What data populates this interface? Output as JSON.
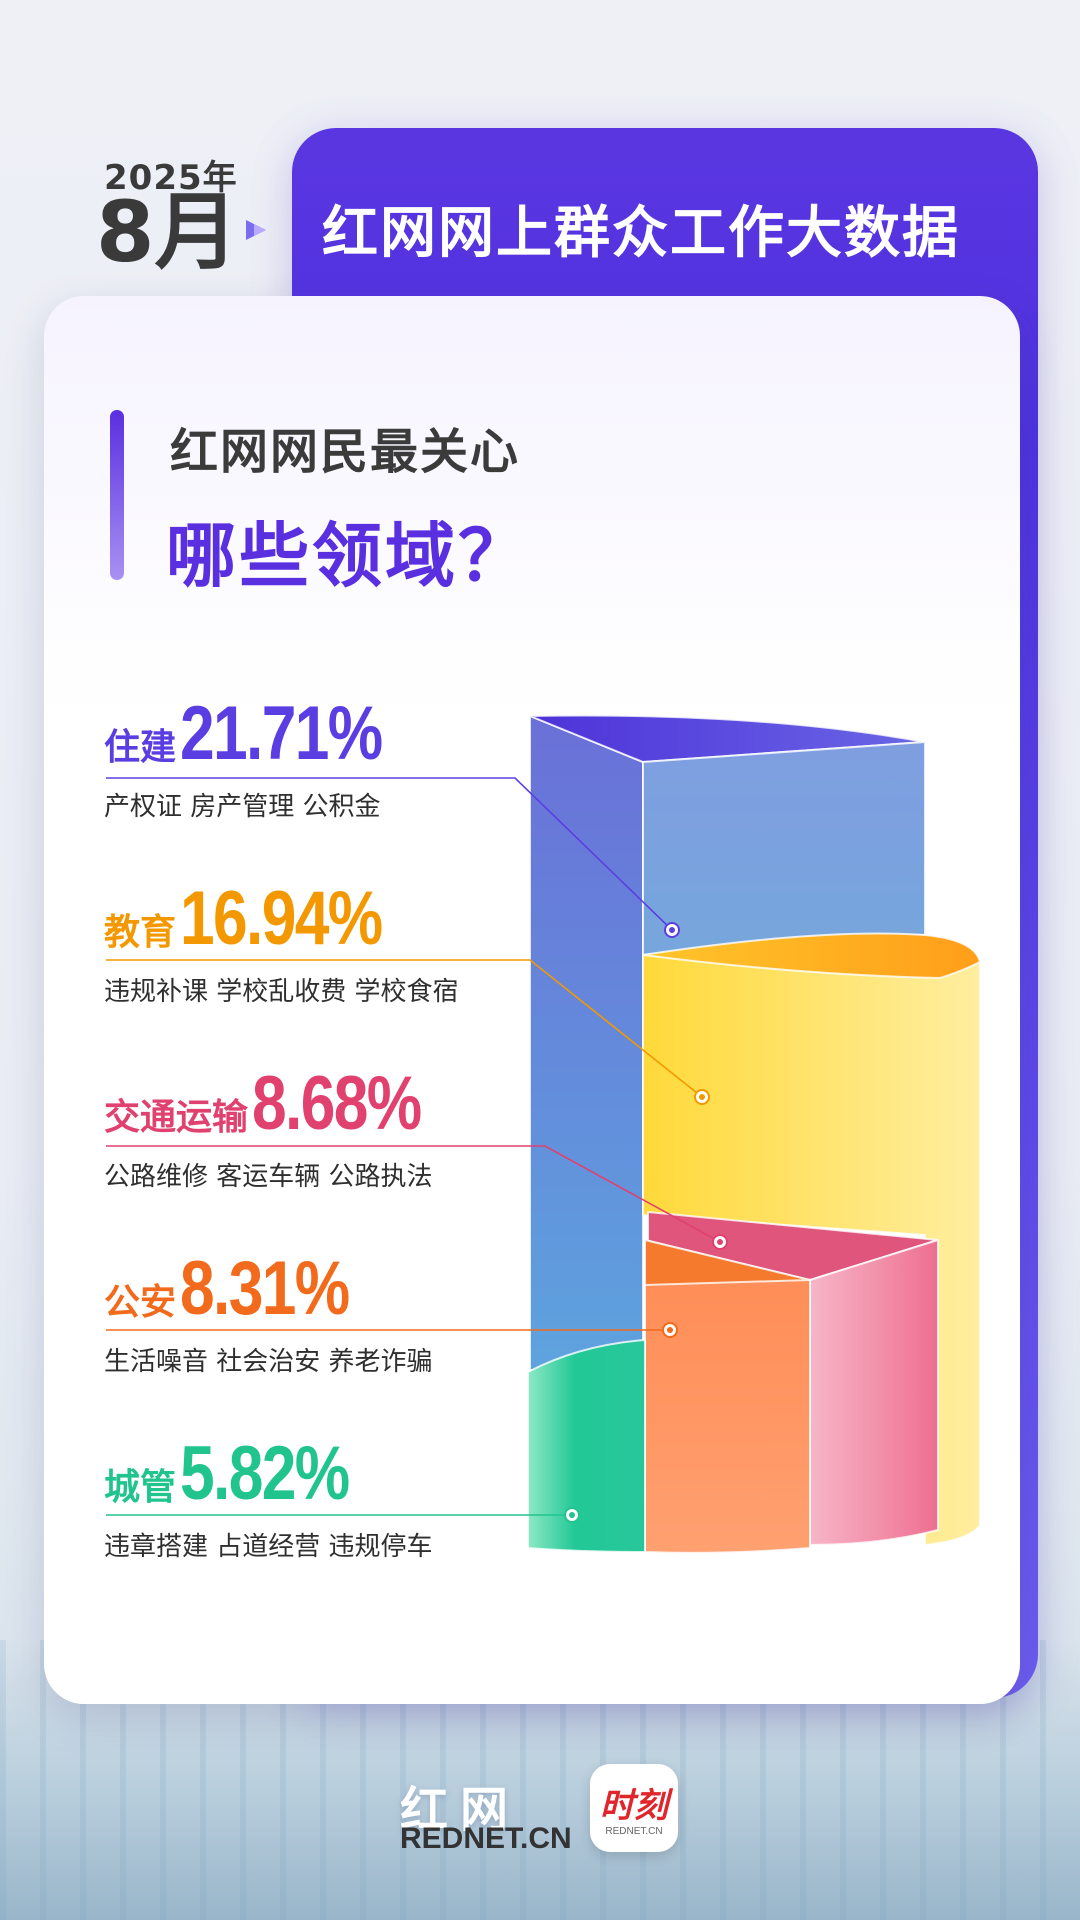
{
  "header": {
    "year": "2025年",
    "month": "8月",
    "title": "红网网上群众工作大数据"
  },
  "question": {
    "line1": "红网网民最关心",
    "line2": "哪些领域？"
  },
  "footer": {
    "logo_cn": "红网",
    "logo_en": "REDNET.CN",
    "app_name": "时刻",
    "app_sub": "REDNET.CN"
  },
  "colors": {
    "purple": "#5b3ee2",
    "orange_edu": "#f39800",
    "pink_traffic": "#e0416f",
    "orange_police": "#f26a1b",
    "green_urban": "#22c48e"
  },
  "chart_data": {
    "type": "bar",
    "title": "",
    "categories": [
      {
        "name": "住建",
        "value": 21.71,
        "label": "21.71%",
        "color": "#5b3ee2",
        "topics": "产权证  房产管理  公积金"
      },
      {
        "name": "教育",
        "value": 16.94,
        "label": "16.94%",
        "color": "#f39800",
        "topics": "违规补课  学校乱收费  学校食宿"
      },
      {
        "name": "交通运输",
        "value": 8.68,
        "label": "8.68%",
        "color": "#e0416f",
        "topics": "公路维修  客运车辆  公路执法"
      },
      {
        "name": "公安",
        "value": 8.31,
        "label": "8.31%",
        "color": "#f26a1b",
        "topics": "生活噪音  社会治安  养老诈骗"
      },
      {
        "name": "城管",
        "value": 5.82,
        "label": "5.82%",
        "color": "#22c48e",
        "topics": "违章搭建  占道经营  违规停车"
      }
    ]
  }
}
